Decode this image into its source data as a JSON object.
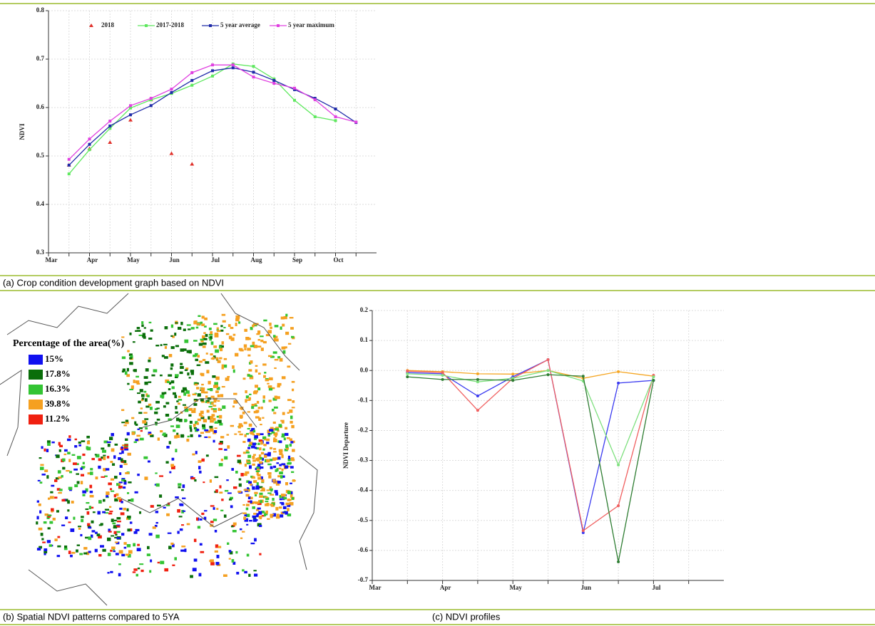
{
  "chart_data": [
    {
      "type": "line",
      "y_label": "NDVI",
      "categories": [
        "Mar",
        null,
        "Apr",
        null,
        "May",
        null,
        "Jun",
        null,
        "Jul",
        null,
        "Aug",
        null,
        "Sep",
        null,
        "Oct",
        null
      ],
      "ylim": [
        0.3,
        0.8
      ],
      "yticks": [
        0.3,
        0.4,
        0.5,
        0.6,
        0.7,
        0.8
      ],
      "grid": true,
      "legend": "top",
      "series": [
        {
          "name": "2018",
          "color": "#e0302a",
          "marker": "triangle",
          "line": false,
          "values": [
            null,
            0.481,
            0.515,
            0.528,
            0.574,
            0.616,
            0.505,
            0.483,
            null,
            null,
            null,
            null,
            null,
            null,
            null,
            null
          ]
        },
        {
          "name": "2017-2018",
          "color": "#5ee85e",
          "marker": "square",
          "line": true,
          "values": [
            null,
            0.463,
            0.513,
            0.557,
            0.599,
            0.616,
            0.629,
            0.646,
            0.665,
            0.69,
            0.685,
            0.659,
            0.615,
            0.581,
            0.573,
            null
          ]
        },
        {
          "name": "5 year average",
          "color": "#1e2aa8",
          "marker": "square",
          "line": true,
          "values": [
            null,
            0.481,
            0.524,
            0.562,
            0.585,
            0.604,
            0.631,
            0.656,
            0.676,
            0.682,
            0.673,
            0.656,
            0.637,
            0.619,
            0.597,
            0.569
          ]
        },
        {
          "name": "5 year maximum",
          "color": "#e040e0",
          "marker": "square",
          "line": true,
          "values": [
            null,
            0.493,
            0.535,
            0.572,
            0.604,
            0.619,
            0.638,
            0.672,
            0.688,
            0.688,
            0.663,
            0.65,
            0.64,
            0.616,
            0.581,
            0.57
          ]
        }
      ]
    },
    {
      "type": "line",
      "y_label": "NDVI Departure",
      "categories": [
        "Mar",
        null,
        "Apr",
        null,
        "May",
        null,
        "Jun",
        null,
        "Jul",
        null
      ],
      "ylim": [
        -0.7,
        0.2
      ],
      "yticks": [
        -0.7,
        -0.6,
        -0.5,
        -0.4,
        -0.3,
        -0.2,
        -0.1,
        {
          "value": 0,
          "label": "0.0"
        },
        0.1,
        0.2
      ],
      "grid": true,
      "series": [
        {
          "color": "#f5a623",
          "marker": "circle",
          "line": true,
          "values": [
            null,
            0.0,
            -0.004,
            -0.011,
            -0.012,
            0.0,
            -0.026,
            -0.004,
            -0.019,
            null
          ]
        },
        {
          "color": "#3b3bf0",
          "marker": "circle",
          "line": true,
          "values": [
            null,
            -0.007,
            -0.011,
            -0.085,
            -0.021,
            0.036,
            -0.541,
            -0.042,
            -0.033,
            null
          ]
        },
        {
          "color": "#f06060",
          "marker": "circle",
          "line": true,
          "values": [
            null,
            -0.002,
            -0.007,
            -0.133,
            -0.026,
            0.036,
            -0.534,
            -0.451,
            -0.016,
            null
          ]
        },
        {
          "color": "#7ee07e",
          "marker": "circle",
          "line": true,
          "values": [
            null,
            -0.011,
            -0.016,
            -0.038,
            -0.026,
            0.0,
            -0.035,
            -0.315,
            -0.021,
            null
          ]
        },
        {
          "color": "#2e7d32",
          "marker": "circle",
          "line": true,
          "values": [
            null,
            -0.021,
            -0.03,
            -0.03,
            -0.033,
            -0.014,
            -0.019,
            -0.638,
            -0.033,
            null
          ]
        }
      ]
    }
  ],
  "map": {
    "legend_title": "Percentage of the area(%)",
    "legend": [
      {
        "label": "15%",
        "color": "#1010f0"
      },
      {
        "label": "17.8%",
        "color": "#0a6e0a"
      },
      {
        "label": "16.3%",
        "color": "#33c433"
      },
      {
        "label": "39.8%",
        "color": "#f5a020"
      },
      {
        "label": "11.2%",
        "color": "#f02010"
      }
    ]
  },
  "captions": [
    "(a) Crop condition development graph based on NDVI",
    "(b) Spatial NDVI patterns compared to 5YA",
    "(c) NDVI profiles"
  ]
}
